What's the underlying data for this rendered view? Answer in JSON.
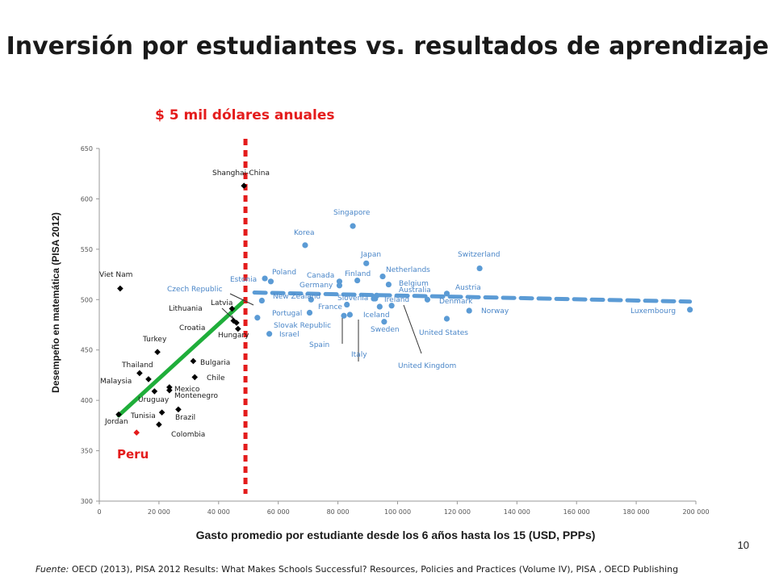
{
  "title": "Inversión por estudiantes vs. resultados de aprendizaje",
  "page_number": "10",
  "source": {
    "prefix": "Fuente:",
    "text": " OECD (2013), PISA 2012 Results: What Makes Schools Successful? Resources, Policies and Practices (Volume IV), PISA , OECD Publishing"
  },
  "colors": {
    "dark_series": "#000000",
    "blue_series": "#5b9bd5",
    "blue_text": "#4a86c8",
    "threshold_line": "#e41c1c",
    "fit_low": "#1fae3a",
    "fit_high": "#5b9bd5",
    "peru": "#e41c1c"
  },
  "chart_data": {
    "type": "scatter",
    "xlabel": "Gasto promedio por estudiante desde los 6 años hasta los 15 (USD, PPPs)",
    "ylabel": "Desempeño en matemática (PISA 2012)",
    "xlim": [
      0,
      200000
    ],
    "ylim": [
      300,
      650
    ],
    "x_ticks": [
      "0",
      "20 000",
      "40 000",
      "60 000",
      "80 000",
      "100 000",
      "120 000",
      "140 000",
      "160 000",
      "180 000",
      "200 000"
    ],
    "y_ticks": [
      "300",
      "350",
      "400",
      "450",
      "500",
      "550",
      "600",
      "650"
    ],
    "grid": false,
    "threshold": {
      "x": 49000,
      "label": "$ 5 mil dólares anuales"
    },
    "fit_lines": [
      {
        "style": "solid",
        "color": "green",
        "points": [
          [
            6500,
            385
          ],
          [
            49000,
            500
          ]
        ]
      },
      {
        "style": "dashed",
        "color": "blue",
        "points": [
          [
            52000,
            507
          ],
          [
            198000,
            498
          ]
        ]
      }
    ],
    "series": [
      {
        "marker": "diamond",
        "color": "dark",
        "points": [
          {
            "label": "Shanghai-China",
            "x": 48500,
            "y": 613
          },
          {
            "label": "Viet Nam",
            "x": 7000,
            "y": 511
          },
          {
            "label": "Latvia",
            "x": 44500,
            "y": 491
          },
          {
            "label": "Lithuania",
            "x": 45000,
            "y": 479
          },
          {
            "label": "Croatia",
            "x": 46500,
            "y": 471
          },
          {
            "label": "Hungary",
            "x": 46000,
            "y": 477
          },
          {
            "label": "Turkey",
            "x": 19500,
            "y": 448
          },
          {
            "label": "Bulgaria",
            "x": 31500,
            "y": 439
          },
          {
            "label": "Thailand",
            "x": 13500,
            "y": 427
          },
          {
            "label": "Chile",
            "x": 32000,
            "y": 423
          },
          {
            "label": "Malaysia",
            "x": 16500,
            "y": 421
          },
          {
            "label": "Mexico",
            "x": 23500,
            "y": 413
          },
          {
            "label": "Montenegro",
            "x": 23500,
            "y": 410
          },
          {
            "label": "Uruguay",
            "x": 18500,
            "y": 409
          },
          {
            "label": "Brazil",
            "x": 26500,
            "y": 391
          },
          {
            "label": "Tunisia",
            "x": 21000,
            "y": 388
          },
          {
            "label": "Jordan",
            "x": 6500,
            "y": 386
          },
          {
            "label": "Colombia",
            "x": 20000,
            "y": 376
          }
        ]
      },
      {
        "marker": "circle",
        "color": "blue",
        "points": [
          {
            "label": "Singapore",
            "x": 85000,
            "y": 573
          },
          {
            "label": "Korea",
            "x": 69000,
            "y": 554
          },
          {
            "label": "Japan",
            "x": 89500,
            "y": 536
          },
          {
            "label": "Switzerland",
            "x": 127500,
            "y": 531
          },
          {
            "label": "Netherlands",
            "x": 95000,
            "y": 523
          },
          {
            "label": "Estonia",
            "x": 55500,
            "y": 521
          },
          {
            "label": "Poland",
            "x": 57500,
            "y": 518
          },
          {
            "label": "Finland",
            "x": 86500,
            "y": 519
          },
          {
            "label": "Canada",
            "x": 80500,
            "y": 518
          },
          {
            "label": "Belgium",
            "x": 97000,
            "y": 515
          },
          {
            "label": "Germany",
            "x": 80500,
            "y": 514
          },
          {
            "label": "Austria",
            "x": 116500,
            "y": 506
          },
          {
            "label": "Australia",
            "x": 93000,
            "y": 504
          },
          {
            "label": "Ireland",
            "x": 92000,
            "y": 501
          },
          {
            "label": "Slovenia",
            "x": 92500,
            "y": 501
          },
          {
            "label": "Denmark",
            "x": 110000,
            "y": 500
          },
          {
            "label": "New Zealand",
            "x": 71000,
            "y": 500
          },
          {
            "label": "Czech Republic",
            "x": 54500,
            "y": 499
          },
          {
            "label": "France",
            "x": 83000,
            "y": 495
          },
          {
            "label": "United Kingdom",
            "x": 98000,
            "y": 494
          },
          {
            "label": "Iceland",
            "x": 94000,
            "y": 493
          },
          {
            "label": "Luxembourg",
            "x": 198000,
            "y": 490
          },
          {
            "label": "Norway",
            "x": 124000,
            "y": 489
          },
          {
            "label": "Portugal",
            "x": 70500,
            "y": 487
          },
          {
            "label": "Italy",
            "x": 84000,
            "y": 485
          },
          {
            "label": "Spain",
            "x": 82000,
            "y": 484
          },
          {
            "label": "United States",
            "x": 116500,
            "y": 481
          },
          {
            "label": "Slovak Republic",
            "x": 53000,
            "y": 482
          },
          {
            "label": "Sweden",
            "x": 95500,
            "y": 478
          },
          {
            "label": "Israel",
            "x": 57000,
            "y": 466
          }
        ]
      },
      {
        "marker": "diamond",
        "color": "red",
        "points": [
          {
            "label": "Peru",
            "x": 12500,
            "y": 368
          }
        ]
      }
    ]
  }
}
